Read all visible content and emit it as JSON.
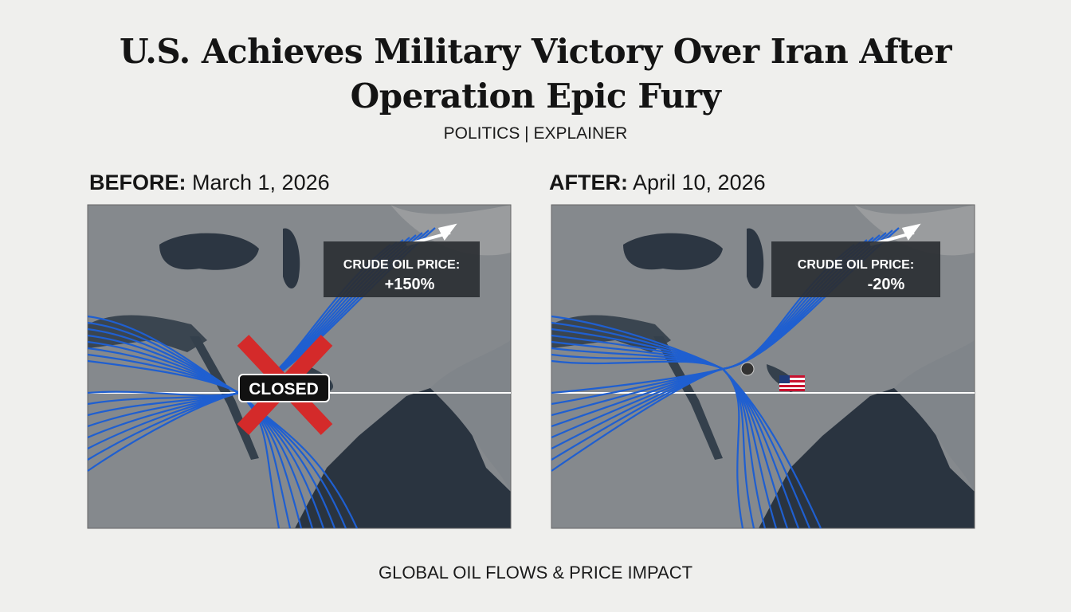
{
  "header": {
    "title_lines": [
      "U.S. Achieves Military Victory Over Iran After",
      "Operation Epic Fury"
    ],
    "subtitle": "POLITICS | EXPLAINER"
  },
  "panels": [
    {
      "label": "BEFORE:",
      "date": "March 1, 2026",
      "price_label": "CRUDE OIL PRICE:",
      "price_change": "+150%",
      "badge": "CLOSED"
    },
    {
      "label": "AFTER:",
      "date": "April 10, 2026",
      "price_label": "CRUDE OIL PRICE:",
      "price_change": "-20%"
    }
  ],
  "footer": "GLOBAL OIL FLOWS & PRICE IMPACT"
}
